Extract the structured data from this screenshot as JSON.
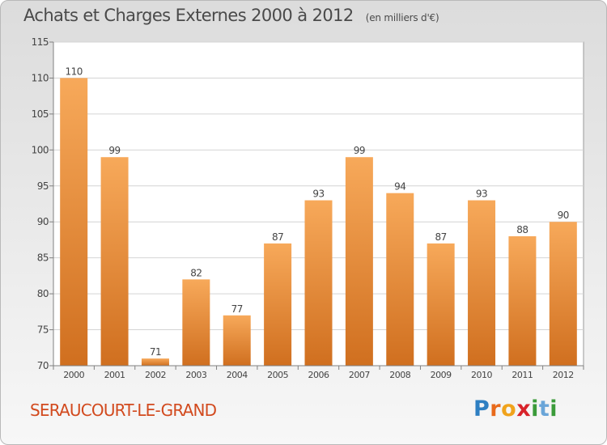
{
  "title": "Achats et Charges Externes 2000 à 2012",
  "subtitle": "(en milliers d'€)",
  "commune": "SERAUCOURT-LE-GRAND",
  "logo": {
    "letters": [
      "P",
      "r",
      "o",
      "x",
      "i",
      "t",
      "i"
    ]
  },
  "colors": {
    "bar_light": "#f7a95a",
    "bar_dark": "#d06f1f",
    "commune_text": "#d24a1e"
  },
  "chart_data": {
    "type": "bar",
    "categories": [
      "2000",
      "2001",
      "2002",
      "2003",
      "2004",
      "2005",
      "2006",
      "2007",
      "2008",
      "2009",
      "2010",
      "2011",
      "2012"
    ],
    "values": [
      110,
      99,
      71,
      82,
      77,
      87,
      93,
      99,
      94,
      87,
      93,
      88,
      90
    ],
    "ylim": [
      70,
      115
    ],
    "yticks": [
      70,
      75,
      80,
      85,
      90,
      95,
      100,
      105,
      110,
      115
    ],
    "grid": true
  }
}
